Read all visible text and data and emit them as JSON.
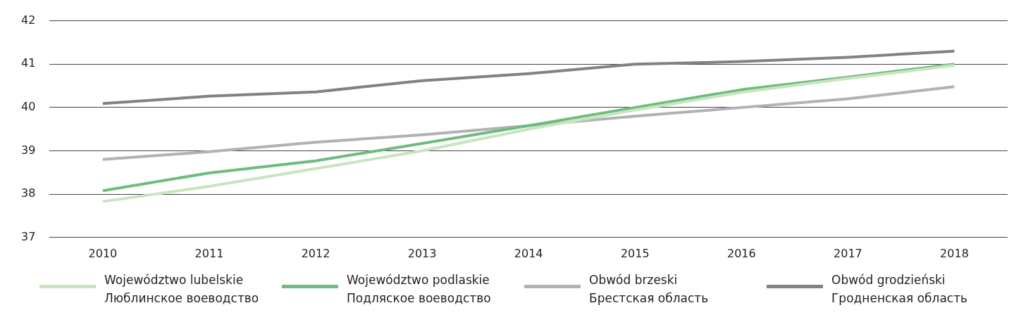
{
  "chart_data": {
    "type": "line",
    "categories": [
      "2010",
      "2011",
      "2012",
      "2013",
      "2014",
      "2015",
      "2016",
      "2017",
      "2018"
    ],
    "series": [
      {
        "name": "Województwo lubelskie\nЛюблинское воеводство",
        "color": "#c9e5c0",
        "values": [
          37.83,
          38.18,
          38.59,
          39.0,
          39.5,
          39.94,
          40.35,
          40.67,
          40.97
        ]
      },
      {
        "name": "Województwo podlaskie\nПодляское воеводство",
        "color": "#6cbd7e",
        "values": [
          38.08,
          38.49,
          38.77,
          39.17,
          39.58,
          40.0,
          40.41,
          40.7,
          41.0
        ]
      },
      {
        "name": "Obwód brzeski\nБрестская область",
        "color": "#b2b2b6",
        "values": [
          38.8,
          38.98,
          39.2,
          39.37,
          39.58,
          39.8,
          40.0,
          40.2,
          40.48
        ]
      },
      {
        "name": "Obwód grodzieński\nГродненская область",
        "color": "#828286",
        "values": [
          40.09,
          40.26,
          40.36,
          40.62,
          40.78,
          41.0,
          41.06,
          41.16,
          41.3
        ]
      }
    ],
    "ylim": [
      37,
      42
    ],
    "yticks": [
      37,
      38,
      39,
      40,
      41,
      42
    ],
    "grid": "y",
    "legend": "bottom",
    "marker": "none",
    "line_style": "solid"
  }
}
